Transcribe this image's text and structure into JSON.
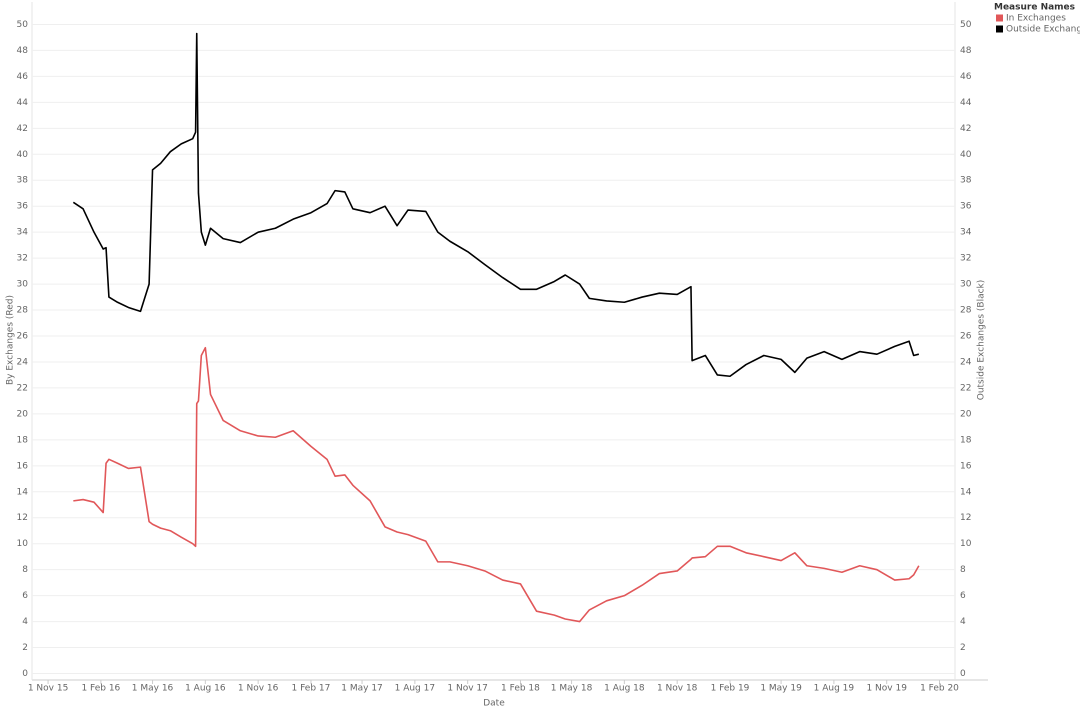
{
  "chart_data": {
    "type": "line",
    "x_label": "Date",
    "y_label": "By Exchanges (Red)",
    "y2_label": "Outside Exchanges (Black)",
    "legend_title": "Measure Names",
    "legend": "top-right",
    "grid": true,
    "xlim": [
      "2015-10-04",
      "2020-02-28"
    ],
    "xticks": [
      {
        "value": "2015-11-01",
        "label": "1 Nov 15"
      },
      {
        "value": "2016-02-01",
        "label": "1 Feb 16"
      },
      {
        "value": "2016-05-01",
        "label": "1 May 16"
      },
      {
        "value": "2016-08-01",
        "label": "1 Aug 16"
      },
      {
        "value": "2016-11-01",
        "label": "1 Nov 16"
      },
      {
        "value": "2017-02-01",
        "label": "1 Feb 17"
      },
      {
        "value": "2017-05-01",
        "label": "1 May 17"
      },
      {
        "value": "2017-08-01",
        "label": "1 Aug 17"
      },
      {
        "value": "2017-11-01",
        "label": "1 Nov 17"
      },
      {
        "value": "2018-02-01",
        "label": "1 Feb 18"
      },
      {
        "value": "2018-05-01",
        "label": "1 May 18"
      },
      {
        "value": "2018-08-01",
        "label": "1 Aug 18"
      },
      {
        "value": "2018-11-01",
        "label": "1 Nov 18"
      },
      {
        "value": "2019-02-01",
        "label": "1 Feb 19"
      },
      {
        "value": "2019-05-01",
        "label": "1 May 19"
      },
      {
        "value": "2019-08-01",
        "label": "1 Aug 19"
      },
      {
        "value": "2019-11-01",
        "label": "1 Nov 19"
      },
      {
        "value": "2020-02-01",
        "label": "1 Feb 20"
      }
    ],
    "ylim": [
      -0.5,
      51.5
    ],
    "yticks": [
      0,
      2,
      4,
      6,
      8,
      10,
      12,
      14,
      16,
      18,
      20,
      22,
      24,
      26,
      28,
      30,
      32,
      34,
      36,
      38,
      40,
      42,
      44,
      46,
      48,
      50
    ],
    "y2lim": [
      -0.5,
      51.5
    ],
    "y2ticks": [
      0,
      2,
      4,
      6,
      8,
      10,
      12,
      14,
      16,
      18,
      20,
      22,
      24,
      26,
      28,
      30,
      32,
      34,
      36,
      38,
      40,
      42,
      44,
      46,
      48,
      50
    ],
    "x": [
      "2015-12-15",
      "2016-01-01",
      "2016-01-20",
      "2016-02-05",
      "2016-02-10",
      "2016-02-15",
      "2016-03-01",
      "2016-03-20",
      "2016-04-10",
      "2016-04-25",
      "2016-05-01",
      "2016-05-15",
      "2016-06-01",
      "2016-06-20",
      "2016-07-10",
      "2016-07-15",
      "2016-07-17",
      "2016-07-20",
      "2016-07-25",
      "2016-08-01",
      "2016-08-10",
      "2016-09-01",
      "2016-10-01",
      "2016-11-01",
      "2016-12-01",
      "2017-01-01",
      "2017-02-01",
      "2017-03-01",
      "2017-03-15",
      "2017-04-01",
      "2017-04-15",
      "2017-05-15",
      "2017-06-10",
      "2017-07-01",
      "2017-07-20",
      "2017-08-20",
      "2017-09-10",
      "2017-10-01",
      "2017-11-01",
      "2017-12-01",
      "2018-01-01",
      "2018-02-01",
      "2018-03-01",
      "2018-04-01",
      "2018-04-20",
      "2018-05-15",
      "2018-06-01",
      "2018-07-01",
      "2018-08-01",
      "2018-09-01",
      "2018-10-01",
      "2018-11-01",
      "2018-11-25",
      "2018-11-27",
      "2018-12-20",
      "2019-01-10",
      "2019-02-01",
      "2019-03-01",
      "2019-04-01",
      "2019-05-01",
      "2019-05-25",
      "2019-06-15",
      "2019-07-15",
      "2019-08-15",
      "2019-09-15",
      "2019-10-15",
      "2019-11-15",
      "2019-12-10",
      "2019-12-18",
      "2019-12-27"
    ],
    "series": [
      {
        "name": "In Exchanges",
        "color": "#e15759",
        "axis": "y",
        "values": [
          13.3,
          13.4,
          13.2,
          12.4,
          16.2,
          16.5,
          16.2,
          15.8,
          15.9,
          11.7,
          11.5,
          11.2,
          11.0,
          10.5,
          10.0,
          9.8,
          20.8,
          21.0,
          24.5,
          25.1,
          21.5,
          19.5,
          18.7,
          18.3,
          18.2,
          18.7,
          17.5,
          16.5,
          15.2,
          15.3,
          14.5,
          13.3,
          11.3,
          10.9,
          10.7,
          10.2,
          8.6,
          8.6,
          8.3,
          7.9,
          7.2,
          6.9,
          4.8,
          4.5,
          4.2,
          4.0,
          4.9,
          5.6,
          6.0,
          6.8,
          7.7,
          7.9,
          8.8,
          8.9,
          9.0,
          9.8,
          9.8,
          9.3,
          9.0,
          8.7,
          9.3,
          8.3,
          8.1,
          7.8,
          8.3,
          8.0,
          7.2,
          7.3,
          7.6,
          8.3
        ]
      },
      {
        "name": "Outside Exchanges",
        "color": "#000000",
        "axis": "y2",
        "values": [
          36.3,
          35.8,
          34.0,
          32.7,
          32.8,
          29.0,
          28.6,
          28.2,
          27.9,
          30.0,
          38.8,
          39.3,
          40.2,
          40.8,
          41.2,
          41.7,
          49.3,
          37.0,
          34.0,
          33.0,
          34.3,
          33.5,
          33.2,
          34.0,
          34.3,
          35.0,
          35.5,
          36.2,
          37.2,
          37.1,
          35.8,
          35.5,
          36.0,
          34.5,
          35.7,
          35.6,
          34.0,
          33.3,
          32.5,
          31.5,
          30.5,
          29.6,
          29.6,
          30.2,
          30.7,
          30.0,
          28.9,
          28.7,
          28.6,
          29.0,
          29.3,
          29.2,
          29.8,
          24.1,
          24.5,
          23.0,
          22.9,
          23.8,
          24.5,
          24.2,
          23.2,
          24.3,
          24.8,
          24.2,
          24.8,
          24.6,
          25.2,
          25.6,
          24.5,
          24.6
        ]
      }
    ]
  }
}
